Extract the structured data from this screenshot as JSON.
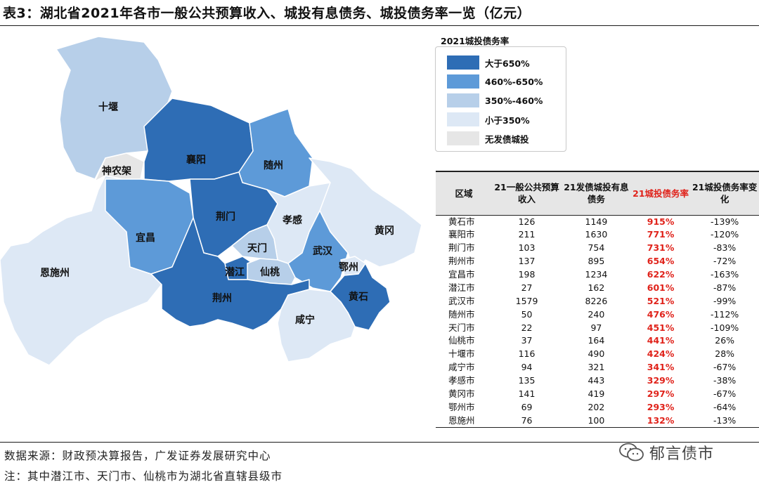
{
  "title": "表3：湖北省2021年各市一般公共预算收入、城投有息债务、城投债务率一览（亿元）",
  "legend": {
    "title": "2021城投债务率",
    "colors": [
      "#2e6db5",
      "#5d9ad8",
      "#b7cfe9",
      "#dde8f5",
      "#e6e6e6"
    ],
    "items": [
      "大于650%",
      "460%-650%",
      "350%-460%",
      "小于350%",
      "无发债城投"
    ]
  },
  "map": {
    "labels": {
      "shiyan": "十堰",
      "xiangyang": "襄阳",
      "suizhou": "随州",
      "shennongjia": "神农架",
      "yichang": "宜昌",
      "jingmen": "荆门",
      "xiaogan": "孝感",
      "huanggang": "黄冈",
      "enshi": "恩施州",
      "tianmen": "天门",
      "wuhan": "武汉",
      "ezhou": "鄂州",
      "qianjiang": "潜江",
      "xiantao": "仙桃",
      "jingzhou": "荆州",
      "huangshi": "黄石",
      "xianning": "咸宁"
    }
  },
  "table": {
    "headers": [
      "区域",
      "21一般公共预算收入",
      "21发债城投有息债务",
      "21城投债务率",
      "21城投债务率变化"
    ],
    "rows": [
      [
        "黄石市",
        "126",
        "1149",
        "915%",
        "-139%"
      ],
      [
        "襄阳市",
        "211",
        "1630",
        "771%",
        "-120%"
      ],
      [
        "荆门市",
        "103",
        "754",
        "731%",
        "-83%"
      ],
      [
        "荆州市",
        "137",
        "895",
        "654%",
        "-72%"
      ],
      [
        "宜昌市",
        "198",
        "1234",
        "622%",
        "-163%"
      ],
      [
        "潜江市",
        "27",
        "162",
        "601%",
        "-87%"
      ],
      [
        "武汉市",
        "1579",
        "8226",
        "521%",
        "-99%"
      ],
      [
        "随州市",
        "50",
        "240",
        "476%",
        "-112%"
      ],
      [
        "天门市",
        "22",
        "97",
        "451%",
        "-109%"
      ],
      [
        "仙桃市",
        "37",
        "164",
        "441%",
        "26%"
      ],
      [
        "十堰市",
        "116",
        "490",
        "424%",
        "28%"
      ],
      [
        "咸宁市",
        "94",
        "321",
        "341%",
        "-67%"
      ],
      [
        "孝感市",
        "135",
        "443",
        "329%",
        "-38%"
      ],
      [
        "黄冈市",
        "141",
        "419",
        "297%",
        "-67%"
      ],
      [
        "鄂州市",
        "69",
        "202",
        "293%",
        "-64%"
      ],
      [
        "恩施州",
        "76",
        "100",
        "132%",
        "-13%"
      ]
    ]
  },
  "footer": {
    "source": "数据来源：财政预决算报告，广发证券发展研究中心",
    "note": "注：其中潜江市、天门市、仙桃市为湖北省直辖县级市"
  },
  "watermark": "郁言债市"
}
